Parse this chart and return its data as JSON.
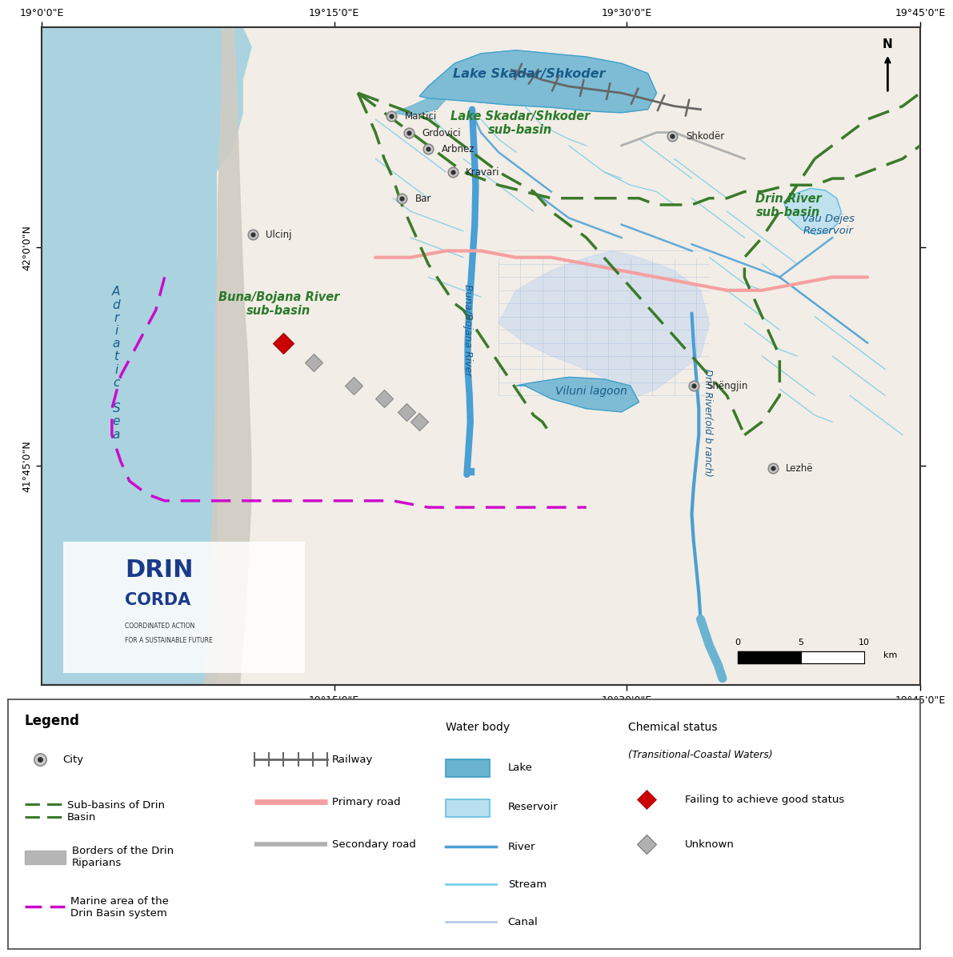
{
  "figure_bg": "#ffffff",
  "map_bg_color": "#aad3df",
  "land_color": "#f2ede6",
  "coastal_strip_color": "#d0ccc4",
  "lake_color": "#6ab4d2",
  "reservoir_color": "#b8dff0",
  "canal_fill_color": "#c8d8f0",
  "river_color": "#4a9fd4",
  "stream_color": "#7dcde8",
  "subbasin_color": "#3a7a2a",
  "marine_color": "#cc00cc",
  "primary_road_color": "#f5a0a0",
  "secondary_road_color": "#b0b0b0",
  "railway_color": "#666666",
  "border_color": "#999999",
  "city_outer_color": "#c8c8c8",
  "city_inner_color": "#333333",
  "failing_color": "#cc0000",
  "unknown_color": "#b0b0b0",
  "legend_border": "#555555",
  "top_labels": [
    "19°0'0\"E",
    "19°15'0\"E",
    "19°30'0\"E",
    "19°45'0\"E"
  ],
  "left_labels": [
    "42°0'0\"N",
    "41°45'0\"N"
  ],
  "bottom_labels": [
    "19°15'0\"E",
    "19°30'0\"E",
    "19°45'0\"E"
  ]
}
